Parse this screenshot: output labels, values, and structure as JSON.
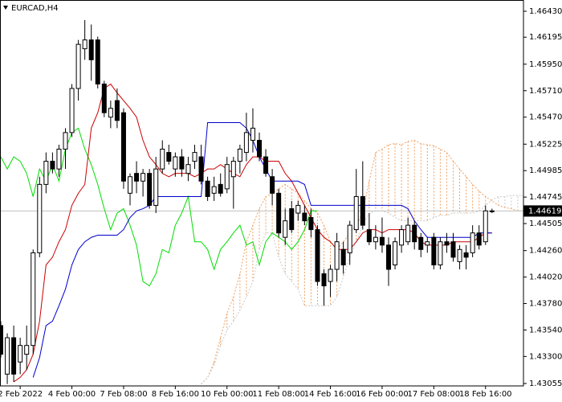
{
  "chart_data": {
    "type": "candlestick",
    "title": "EURCAD,H4",
    "categories": [
      null,
      null,
      null,
      "2 Feb 2022",
      null,
      null,
      null,
      null,
      null,
      null,
      null,
      "4 Feb 00:00",
      null,
      null,
      null,
      null,
      null,
      null,
      null,
      "7 Feb 08:00",
      null,
      null,
      null,
      null,
      null,
      null,
      null,
      "8 Feb 16:00",
      null,
      null,
      null,
      null,
      null,
      null,
      null,
      "10 Feb 00:00",
      null,
      null,
      null,
      null,
      null,
      null,
      null,
      "11 Feb 08:00",
      null,
      null,
      null,
      null,
      null,
      null,
      null,
      "14 Feb 16:00",
      null,
      null,
      null,
      null,
      null,
      null,
      null,
      "16 Feb 00:00",
      null,
      null,
      null,
      null,
      null,
      null,
      null,
      "17 Feb 08:00",
      null,
      null,
      null,
      null,
      null,
      null,
      null,
      "18 Feb 16:00",
      null,
      null,
      null,
      null,
      null,
      null,
      null
    ],
    "ohlc": [
      [
        1.4358,
        1.4362,
        1.4329,
        1.4332
      ],
      [
        1.4314,
        1.4351,
        1.4305,
        1.4347
      ],
      [
        1.4347,
        1.4358,
        1.4307,
        1.4314
      ],
      [
        1.4325,
        1.4347,
        1.4314,
        1.434
      ],
      [
        1.4332,
        1.4358,
        1.4318,
        1.434
      ],
      [
        1.434,
        1.4427,
        1.4332,
        1.4424
      ],
      [
        1.4424,
        1.4493,
        1.442,
        1.4486
      ],
      [
        1.4486,
        1.4515,
        1.4478,
        1.4507
      ],
      [
        1.4507,
        1.4515,
        1.4496,
        1.45
      ],
      [
        1.45,
        1.4522,
        1.4493,
        1.4518
      ],
      [
        1.4518,
        1.4537,
        1.45,
        1.4533
      ],
      [
        1.4533,
        1.4577,
        1.4529,
        1.4573
      ],
      [
        1.4573,
        1.4617,
        1.4562,
        1.4613
      ],
      [
        1.4609,
        1.4635,
        1.4599,
        1.4617
      ],
      [
        1.4617,
        1.4631,
        1.458,
        1.4599
      ],
      [
        1.4617,
        1.462,
        1.4573,
        1.4577
      ],
      [
        1.4577,
        1.458,
        1.4547,
        1.4551
      ],
      [
        1.4547,
        1.4562,
        1.4537,
        1.4555
      ],
      [
        1.4562,
        1.4573,
        1.4537,
        1.4544
      ],
      [
        1.4551,
        1.4555,
        1.4482,
        1.4489
      ],
      [
        1.4478,
        1.4496,
        1.4467,
        1.4493
      ],
      [
        1.4496,
        1.4507,
        1.4478,
        1.4489
      ],
      [
        1.4489,
        1.45,
        1.4475,
        1.4496
      ],
      [
        1.4496,
        1.45,
        1.4464,
        1.4467
      ],
      [
        1.4467,
        1.4511,
        1.446,
        1.45
      ],
      [
        1.45,
        1.4526,
        1.4496,
        1.4518
      ],
      [
        1.4515,
        1.4522,
        1.4504,
        1.4507
      ],
      [
        1.45,
        1.4515,
        1.4493,
        1.4511
      ],
      [
        1.4511,
        1.4518,
        1.4493,
        1.45
      ],
      [
        1.4496,
        1.4511,
        1.4489,
        1.4504
      ],
      [
        1.4507,
        1.4522,
        1.45,
        1.4515
      ],
      [
        1.4511,
        1.4522,
        1.4486,
        1.4489
      ],
      [
        1.4489,
        1.4493,
        1.4471,
        1.4475
      ],
      [
        1.4478,
        1.4493,
        1.4471,
        1.4484
      ],
      [
        1.4486,
        1.4496,
        1.4475,
        1.4478
      ],
      [
        1.4482,
        1.4511,
        1.4478,
        1.4504
      ],
      [
        1.4493,
        1.4511,
        1.4464,
        1.4507
      ],
      [
        1.4507,
        1.4522,
        1.4496,
        1.4518
      ],
      [
        1.4515,
        1.4551,
        1.4507,
        1.4533
      ],
      [
        1.4526,
        1.4555,
        1.4515,
        1.4537
      ],
      [
        1.4526,
        1.4533,
        1.4507,
        1.4511
      ],
      [
        1.4511,
        1.4518,
        1.4493,
        1.4496
      ],
      [
        1.4493,
        1.45,
        1.4467,
        1.4478
      ],
      [
        1.4478,
        1.4482,
        1.4438,
        1.4442
      ],
      [
        1.4438,
        1.4464,
        1.4431,
        1.4453
      ],
      [
        1.4464,
        1.4471,
        1.4442,
        1.4445
      ],
      [
        1.446,
        1.4471,
        1.4453,
        1.4467
      ],
      [
        1.446,
        1.4467,
        1.4449,
        1.4453
      ],
      [
        1.4456,
        1.4464,
        1.4438,
        1.4445
      ],
      [
        1.4445,
        1.4449,
        1.4394,
        1.4398
      ],
      [
        1.4405,
        1.4409,
        1.4376,
        1.4394
      ],
      [
        1.4398,
        1.4413,
        1.4384,
        1.4409
      ],
      [
        1.4409,
        1.4442,
        1.4398,
        1.4434
      ],
      [
        1.4427,
        1.4434,
        1.4405,
        1.4413
      ],
      [
        1.4424,
        1.4453,
        1.4413,
        1.4449
      ],
      [
        1.4445,
        1.45,
        1.4442,
        1.4475
      ],
      [
        1.4475,
        1.4507,
        1.4445,
        1.4449
      ],
      [
        1.4445,
        1.446,
        1.4431,
        1.4434
      ],
      [
        1.4434,
        1.4449,
        1.4427,
        1.4438
      ],
      [
        1.4438,
        1.4456,
        1.4424,
        1.4431
      ],
      [
        1.4431,
        1.4438,
        1.4394,
        1.4409
      ],
      [
        1.4413,
        1.4438,
        1.4409,
        1.4434
      ],
      [
        1.4431,
        1.4449,
        1.4424,
        1.4445
      ],
      [
        1.4434,
        1.4456,
        1.4431,
        1.4449
      ],
      [
        1.4449,
        1.4453,
        1.4427,
        1.4434
      ],
      [
        1.4438,
        1.4442,
        1.442,
        1.4427
      ],
      [
        1.4431,
        1.4438,
        1.4424,
        1.4434
      ],
      [
        1.4438,
        1.4442,
        1.4409,
        1.4413
      ],
      [
        1.4413,
        1.4438,
        1.4409,
        1.4434
      ],
      [
        1.4434,
        1.4442,
        1.4424,
        1.4431
      ],
      [
        1.4434,
        1.4442,
        1.4416,
        1.442
      ],
      [
        1.4416,
        1.4431,
        1.4409,
        1.4427
      ],
      [
        1.4424,
        1.4431,
        1.4409,
        1.442
      ],
      [
        1.4424,
        1.4449,
        1.442,
        1.4442
      ],
      [
        1.4442,
        1.4449,
        1.4427,
        1.4431
      ],
      [
        1.4434,
        1.4467,
        1.4431,
        1.4462
      ],
      [
        1.4462,
        1.4464,
        1.446,
        1.44619
      ],
      null,
      null,
      null,
      null,
      null,
      null
    ],
    "bull_color": "#ffffff",
    "bear_color": "#000000",
    "lines": [
      {
        "color": "#00dd00",
        "values": [
          1.4511,
          1.45,
          1.4511,
          1.4507,
          1.4496,
          1.4475,
          1.45,
          1.4489,
          1.4504,
          1.4489,
          1.4518,
          1.4533,
          1.4537,
          1.4518,
          1.4504,
          1.4486,
          1.4464,
          1.4445,
          1.446,
          1.4464,
          1.4449,
          1.4431,
          1.4398,
          1.4394,
          1.4405,
          1.4427,
          1.4424,
          1.4449,
          1.446,
          1.4475,
          1.4434,
          1.4434,
          1.4427,
          1.4409,
          1.4427,
          1.4434,
          1.4442,
          1.4449,
          1.4431,
          1.4434,
          1.4413,
          1.4434,
          1.4442,
          1.4438,
          1.4434,
          1.4427,
          1.4434,
          1.4445,
          1.4462,
          1.4462,
          null,
          null,
          null,
          null,
          null,
          null,
          null,
          null,
          null,
          null,
          null,
          null,
          null,
          null,
          null,
          null,
          null,
          null,
          null,
          null,
          null,
          null,
          null,
          null,
          null,
          null,
          null,
          null,
          null,
          null,
          null,
          null,
          null
        ]
      },
      {
        "color": "#cc0000",
        "values": [
          null,
          null,
          1.4307,
          1.4311,
          1.4318,
          1.4332,
          1.4362,
          1.4413,
          1.442,
          1.4434,
          1.4445,
          1.4467,
          1.4478,
          1.4486,
          1.4537,
          1.4551,
          1.4573,
          1.4577,
          1.4569,
          1.4562,
          1.4555,
          1.4547,
          1.4526,
          1.4511,
          1.4504,
          1.4496,
          1.4493,
          1.4496,
          1.4496,
          1.4496,
          1.4493,
          1.4496,
          1.45,
          1.45,
          1.4504,
          1.45,
          1.4496,
          1.4493,
          1.4504,
          1.4511,
          1.4511,
          1.4507,
          1.4507,
          1.4507,
          1.4496,
          1.4489,
          1.4478,
          1.4467,
          1.4456,
          1.4445,
          1.4438,
          1.4434,
          1.4427,
          1.4427,
          1.4427,
          1.4434,
          1.4442,
          1.4445,
          1.4445,
          1.4442,
          1.4445,
          1.4445,
          1.4445,
          1.4445,
          1.4442,
          1.4434,
          1.4431,
          1.4431,
          1.4431,
          1.4431,
          1.4434,
          1.4434,
          1.4434,
          1.4434,
          1.4438,
          1.4442,
          1.4442,
          null,
          null,
          null,
          null,
          null,
          null
        ]
      },
      {
        "color": "#0000cc",
        "values": [
          null,
          null,
          null,
          null,
          null,
          1.4311,
          1.4329,
          1.4358,
          1.4362,
          1.4376,
          1.4391,
          1.4413,
          1.4427,
          1.4434,
          1.4438,
          1.444,
          1.444,
          1.444,
          1.444,
          1.4445,
          1.4456,
          1.4462,
          1.4464,
          1.4467,
          1.4475,
          1.4475,
          1.4475,
          1.4475,
          1.4475,
          1.4475,
          1.4475,
          1.4475,
          1.4542,
          1.4542,
          1.4542,
          1.4542,
          1.4542,
          1.4542,
          1.4537,
          1.4526,
          1.4511,
          1.45,
          1.4489,
          1.4489,
          1.4489,
          1.4489,
          1.4489,
          1.4486,
          1.4467,
          1.4467,
          1.4467,
          1.4467,
          1.4467,
          1.4467,
          1.4467,
          1.4467,
          1.4467,
          1.4467,
          1.4467,
          1.4467,
          1.4467,
          1.4467,
          1.4467,
          1.4464,
          1.4453,
          1.4445,
          1.4438,
          1.4438,
          1.4438,
          1.4438,
          1.4438,
          1.4438,
          1.4438,
          1.4438,
          1.4442,
          1.4442,
          1.4442,
          null,
          null,
          null,
          null,
          null,
          null
        ]
      }
    ],
    "cloud": {
      "color_up": "#f0a060",
      "color_down": "#c8c8c8",
      "span_a": [
        null,
        null,
        null,
        null,
        null,
        null,
        null,
        null,
        null,
        null,
        null,
        null,
        null,
        null,
        null,
        null,
        null,
        null,
        null,
        null,
        null,
        null,
        null,
        null,
        null,
        null,
        null,
        null,
        null,
        null,
        null,
        1.4305,
        1.4311,
        1.4325,
        1.4347,
        1.4369,
        1.4384,
        1.4405,
        1.4434,
        1.4449,
        1.4464,
        1.4475,
        1.4478,
        1.4482,
        1.4486,
        1.4482,
        1.4478,
        1.4471,
        1.4464,
        1.446,
        1.4449,
        1.4434,
        1.4427,
        1.4434,
        1.4442,
        1.4449,
        1.446,
        1.4489,
        1.4515,
        1.4518,
        1.4522,
        1.4523,
        1.4522,
        1.4525,
        1.4526,
        1.4523,
        1.4522,
        1.4521,
        1.4518,
        1.4515,
        1.4507,
        1.45,
        1.4493,
        1.4486,
        1.448,
        1.4475,
        1.4471,
        1.4467,
        1.4465,
        1.4464,
        1.4462,
        1.4462,
        1.4462
      ],
      "span_b": [
        null,
        null,
        null,
        null,
        null,
        null,
        null,
        null,
        null,
        null,
        null,
        null,
        null,
        null,
        null,
        null,
        null,
        null,
        null,
        null,
        null,
        null,
        null,
        null,
        null,
        null,
        null,
        null,
        null,
        null,
        null,
        1.4305,
        1.4311,
        1.4322,
        1.434,
        1.4354,
        1.4362,
        1.4372,
        1.4384,
        1.4398,
        1.4427,
        1.4442,
        1.4442,
        1.442,
        1.4405,
        1.4398,
        1.4391,
        1.4376,
        1.4376,
        1.4376,
        1.4376,
        1.4376,
        1.4384,
        1.4402,
        1.442,
        1.4434,
        1.4449,
        1.446,
        1.4462,
        1.4462,
        1.446,
        1.4456,
        1.4453,
        1.4453,
        1.4453,
        1.4453,
        1.4453,
        1.4456,
        1.4458,
        1.4458,
        1.446,
        1.446,
        1.446,
        1.446,
        1.4462,
        1.4467,
        1.4472,
        1.4475,
        1.4475,
        1.4476,
        1.4476,
        1.4476,
        1.4476
      ]
    },
    "current_price": 1.44619,
    "ylim": [
      1.43033,
      1.46532
    ],
    "yticks": [
      {
        "value": 1.4643,
        "label": "1.46430"
      },
      1.46195,
      {
        "value": 1.4595,
        "label": "1.45950"
      },
      {
        "value": 1.4571,
        "label": "1.45710"
      },
      {
        "value": 1.4547,
        "label": "1.45470"
      },
      1.45225,
      1.44985,
      1.44745,
      1.44505,
      {
        "value": 1.4426,
        "label": "1.44260"
      },
      {
        "value": 1.4402,
        "label": "1.44020"
      },
      {
        "value": 1.4378,
        "label": "1.43780"
      },
      {
        "value": 1.4354,
        "label": "1.43540"
      },
      {
        "value": 1.433,
        "label": "1.43300"
      },
      1.43055
    ]
  }
}
